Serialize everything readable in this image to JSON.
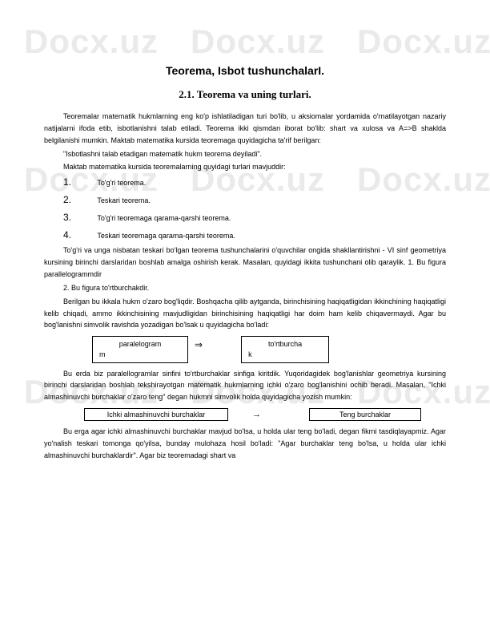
{
  "watermark": "Docx.uz",
  "title1": "Teorema, Isbot tushunchalarI.",
  "title2": "2.1. Teorema va uning turlari.",
  "p1": "Teoremalar matematik hukmlarning eng ko'p ishlatiladigan turi bo'lib, u aksiomalar yordamida o'rnatilayotgan nazariy natijalarni ifoda etib, isbotlanishni talab etiladi. Teorema ikki qismdan iborat bo'lib: shart va xulosa va A=>B shaklda belgilanishi mumkin. Maktab matematika kursida teoremaga quyidagicha ta'rif berilgan:",
  "p2": "\"Isbotlashni talab etadigan matematik hukm teorema deyiladi\".",
  "p3": "Maktab matematika kursida teoremalarning quyidagi turlari mavjuddir:",
  "list": [
    {
      "n": "1.",
      "t": "To'g'ri teorema."
    },
    {
      "n": "2.",
      "t": "Teskari teorema."
    },
    {
      "n": "3.",
      "t": "To'g'ri teoremaga qarama-qarshi teorema."
    },
    {
      "n": "4.",
      "t": "Teskari teoremaga qarama-qarshi teorema."
    }
  ],
  "p4": "To'g'ri va unga nisbatan teskari bo'lgan teorema tushunchalarini o'quvchilar ongida shakllantirishni - VI sinf geometriya kursining birinchi darslaridan boshlab amalga oshirish kerak. Masalan, quyidagi ikkita tushunchani olib qaraylik. 1. Bu figura parallelogrammdir",
  "p5": "2. Bu figura to'rtburchakdir.",
  "p6": "Berilgan bu ikkala hukm o'zaro bog'liqdir. Boshqacha qilib aytganda, birinchisining haqiqatligidan ikkinchining haqiqatligi kelib chiqadi, ammo ikkinchisining mavjudligidan birinchisining haqiqatligi har doim ham kelib chiqavermaydi. Agar bu bog'lanishni simvolik ravishda yozadigan bo'lsak u quyidagicha bo'ladi:",
  "box1a": "paralelogram",
  "box1b": "m",
  "box2a": "to'rtburcha",
  "box2b": "k",
  "arrow1": "⇒",
  "p7": "Bu erda biz paralellogramlar sinfini to'rtburchaklar sinfiga kiritdik. Yuqoridagidek bog'lanishlar geometriya kursining birinchi darslaridan boshlab tekshirayotgan matematik hukmlarning ichki o'zaro bog'lanishini ochib beradi. Masalan, \"Ichki almashinuvchi burchaklar o'zaro teng\" degan hukmni simvolik holda quyidagicha yozish mumkin:",
  "boxA": "Ichki almashinuvchi burchaklar",
  "boxB": "Teng burchaklar",
  "arrow2": "→",
  "p8": "Bu erga agar ichki almashinuvchi burchaklar mavjud bo'lsa, u holda ular teng bo'ladi, degan fikrni tasdiqlayapmiz. Agar yo'nalish teskari tomonga qo'yilsa, bunday mulohaza hosil bo'ladi: \"Agar burchaklar teng bo'lsa, u holda ular ichki almashinuvchi burchaklardir\". Agar biz teoremadagi shart va"
}
